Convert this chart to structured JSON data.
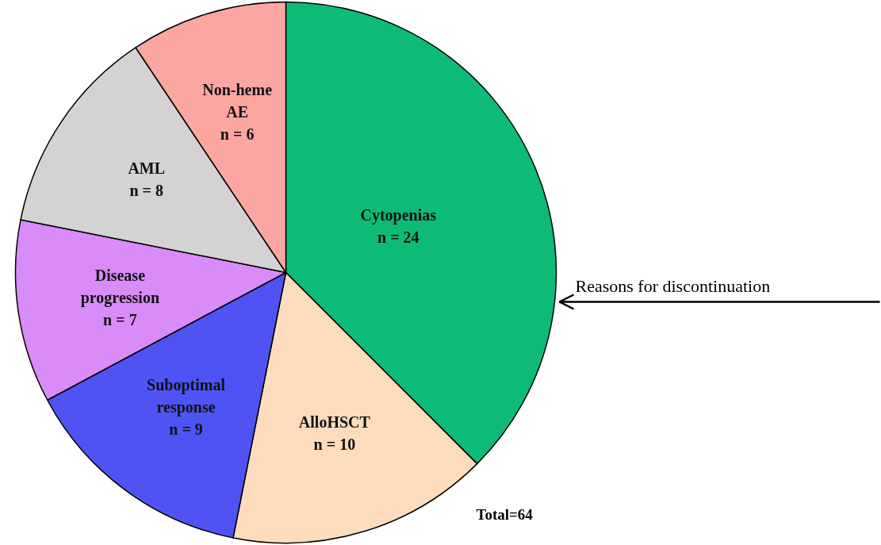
{
  "chart_data": {
    "type": "pie",
    "categories": [
      "Cytopenias",
      "AlloHSCT",
      "Suboptimal response",
      "Disease progression",
      "AML",
      "Non-heme AE"
    ],
    "values": [
      24,
      10,
      9,
      7,
      8,
      6
    ],
    "colors": [
      "#0dbb77",
      "#fddcbd",
      "#5053f4",
      "#d98bf8",
      "#d3d3d3",
      "#fca6a1"
    ],
    "value_labels": [
      "n = 24",
      "n = 10",
      "n = 9",
      "n = 7",
      "n = 8",
      "n = 6"
    ],
    "annotations": [
      "Reasons for discontinuation",
      "Total=64"
    ]
  }
}
